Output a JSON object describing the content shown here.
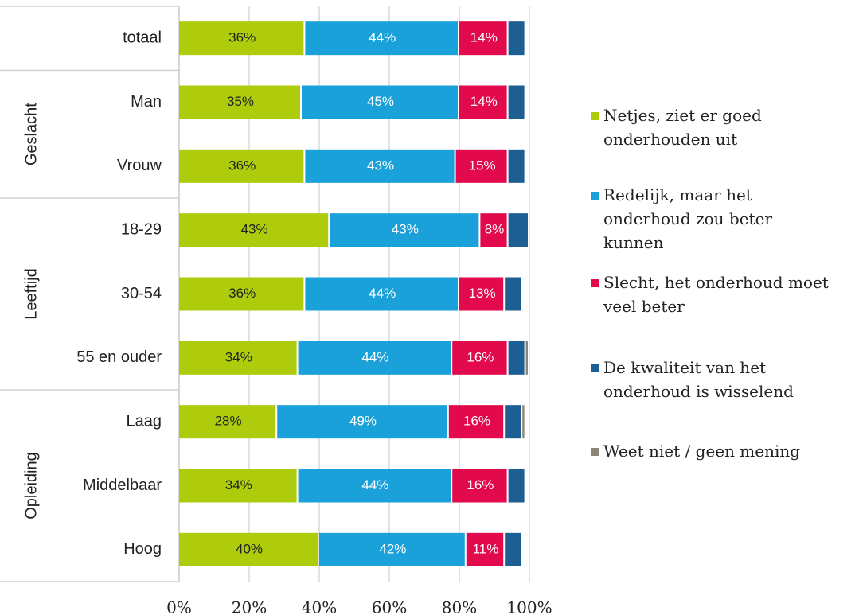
{
  "chart_data": {
    "type": "stacked-bar-horizontal",
    "categories": [
      "totaal",
      "Man",
      "Vrouw",
      "18-29",
      "30-54",
      "55 en ouder",
      "Laag",
      "Middelbaar",
      "Hoog"
    ],
    "groups": [
      {
        "name": "Geslacht",
        "from": 1,
        "to": 2
      },
      {
        "name": "Leeftijd",
        "from": 3,
        "to": 5
      },
      {
        "name": "Opleiding",
        "from": 6,
        "to": 8
      }
    ],
    "series": [
      {
        "name": "Netjes, ziet er goed onderhouden uit",
        "color": "#aecb0c",
        "label_color": "#222222",
        "values": [
          36,
          35,
          36,
          43,
          36,
          34,
          28,
          34,
          40
        ],
        "value_labels": [
          "36%",
          "35%",
          "36%",
          "43%",
          "36%",
          "34%",
          "28%",
          "34%",
          "40%"
        ]
      },
      {
        "name": "Redelijk, maar het onderhoud zou beter kunnen",
        "color": "#1ba1d9",
        "label_color": "#ffffff",
        "values": [
          44,
          45,
          43,
          43,
          44,
          44,
          49,
          44,
          42
        ],
        "value_labels": [
          "44%",
          "45%",
          "43%",
          "43%",
          "44%",
          "44%",
          "49%",
          "44%",
          "42%"
        ]
      },
      {
        "name": "Slecht, het onderhoud moet veel beter",
        "color": "#e2094c",
        "label_color": "#ffffff",
        "values": [
          14,
          14,
          15,
          8,
          13,
          16,
          16,
          16,
          11
        ],
        "value_labels": [
          "14%",
          "14%",
          "15%",
          "8%",
          "13%",
          "16%",
          "16%",
          "16%",
          "11%"
        ]
      },
      {
        "name": "De kwaliteit van het onderhoud is wisselend",
        "color": "#1d5e93",
        "values": [
          5,
          5,
          5,
          6,
          5,
          5,
          5,
          5,
          5
        ]
      },
      {
        "name": "Weet niet / geen mening",
        "color": "#8c8677",
        "values": [
          0,
          0,
          0,
          0,
          0,
          1,
          1,
          0,
          0
        ]
      }
    ],
    "xlim": [
      0,
      100
    ],
    "xticks": [
      {
        "value": 0,
        "label": "0%"
      },
      {
        "value": 20,
        "label": "20%"
      },
      {
        "value": 40,
        "label": "40%"
      },
      {
        "value": 60,
        "label": "60%"
      },
      {
        "value": 80,
        "label": "80%"
      },
      {
        "value": 100,
        "label": "100%"
      }
    ],
    "grid": true
  }
}
